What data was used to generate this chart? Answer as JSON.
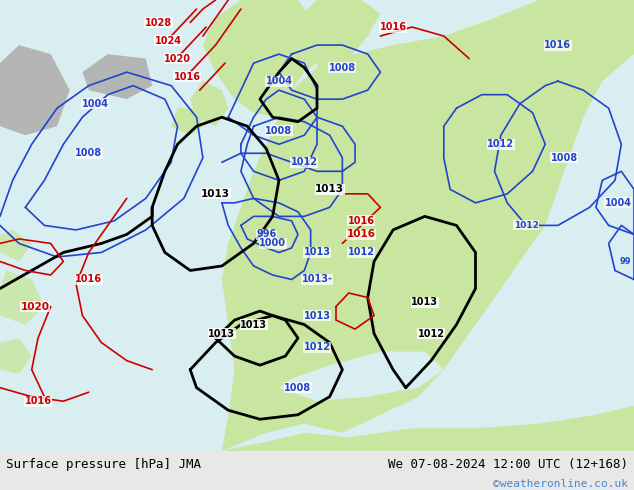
{
  "title_left": "Surface pressure [hPa] JMA",
  "title_right": "We 07-08-2024 12:00 UTC (12+168)",
  "copyright": "©weatheronline.co.uk",
  "land_color": "#c8e6a0",
  "sea_color": "#d8eef0",
  "gray_color": "#b0b0b0",
  "bottom_bar_color": "#e8e8e8",
  "blue": "#2244cc",
  "red": "#cc0000",
  "black": "#000000",
  "copyright_color": "#4488cc",
  "fig_width": 6.34,
  "fig_height": 4.9,
  "dpi": 100
}
